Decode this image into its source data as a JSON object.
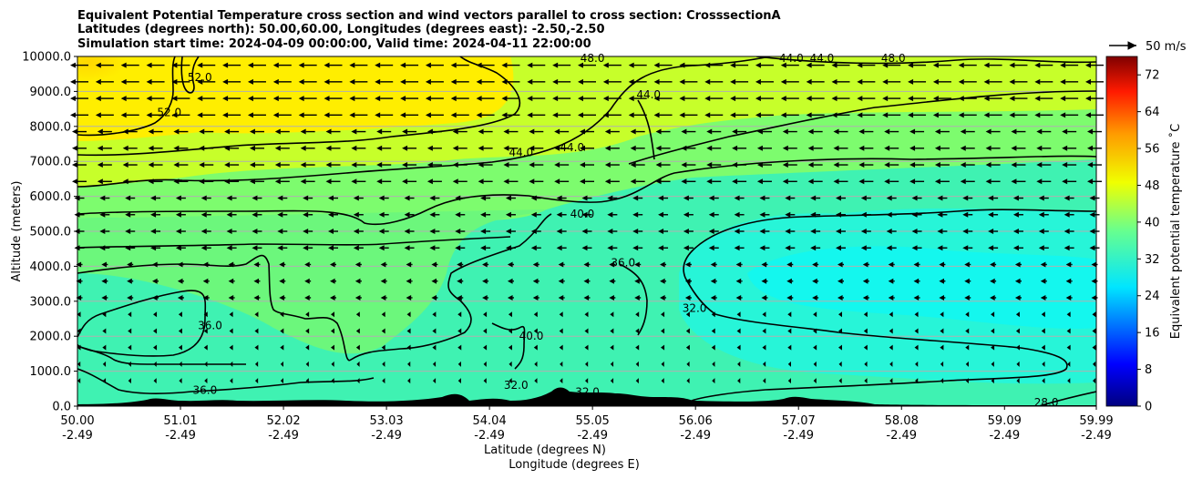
{
  "chart_data": {
    "type": "contour",
    "title_lines": [
      "Equivalent Potential Temperature cross section and wind vectors parallel to cross section: CrosssectionA",
      "Latitudes (degrees north): 50.00,60.00, Longitudes (degrees east): -2.50,-2.50",
      "Simulation start time: 2024-04-09 00:00:00, Valid time: 2024-04-11 22:00:00"
    ],
    "ylabel": "Altitude (meters)",
    "xlabel_lines": [
      "Latitude (degrees N)",
      "Longitude (degrees E)"
    ],
    "ylim": [
      0,
      10000
    ],
    "xlim": [
      50.0,
      59.99
    ],
    "yticks": [
      "0.0",
      "1000.0",
      "2000.0",
      "3000.0",
      "4000.0",
      "5000.0",
      "6000.0",
      "7000.0",
      "8000.0",
      "9000.0",
      "10000.0"
    ],
    "xticks": [
      {
        "lat": "50.00",
        "lon": "-2.49"
      },
      {
        "lat": "51.01",
        "lon": "-2.49"
      },
      {
        "lat": "52.02",
        "lon": "-2.49"
      },
      {
        "lat": "53.03",
        "lon": "-2.49"
      },
      {
        "lat": "54.04",
        "lon": "-2.49"
      },
      {
        "lat": "55.05",
        "lon": "-2.49"
      },
      {
        "lat": "56.06",
        "lon": "-2.49"
      },
      {
        "lat": "57.07",
        "lon": "-2.49"
      },
      {
        "lat": "58.08",
        "lon": "-2.49"
      },
      {
        "lat": "59.09",
        "lon": "-2.49"
      },
      {
        "lat": "59.99",
        "lon": "-2.49"
      }
    ],
    "grid": "horizontal",
    "colorbar": {
      "label": "Equivalent potential temperature $^\\circ$C",
      "label_text": "Equivalent potential temperature ˚C",
      "min": 0,
      "max": 76,
      "ticks": [
        "0",
        "8",
        "16",
        "24",
        "32",
        "40",
        "48",
        "56",
        "64",
        "72"
      ]
    },
    "quiver_key": "50 m/s",
    "contour_labels": [
      {
        "text": "52.0",
        "lat": 51.2,
        "alt": 9400
      },
      {
        "text": "52.0",
        "lat": 50.9,
        "alt": 8400
      },
      {
        "text": "48.0",
        "lat": 55.05,
        "alt": 9950
      },
      {
        "text": "44.0",
        "lat": 55.6,
        "alt": 8900
      },
      {
        "text": "44.0",
        "lat": 57.0,
        "alt": 9950
      },
      {
        "text": "44.0",
        "lat": 57.3,
        "alt": 9950
      },
      {
        "text": "48.0",
        "lat": 58.0,
        "alt": 9950
      },
      {
        "text": "44.0",
        "lat": 54.35,
        "alt": 7250
      },
      {
        "text": "44.0",
        "lat": 54.85,
        "alt": 7400
      },
      {
        "text": "40.0",
        "lat": 54.95,
        "alt": 5500
      },
      {
        "text": "36.0",
        "lat": 55.35,
        "alt": 4100
      },
      {
        "text": "32.0",
        "lat": 56.05,
        "alt": 2800
      },
      {
        "text": "36.0",
        "lat": 51.3,
        "alt": 2300
      },
      {
        "text": "40.0",
        "lat": 54.45,
        "alt": 2000
      },
      {
        "text": "32.0",
        "lat": 54.3,
        "alt": 600
      },
      {
        "text": "32.0",
        "lat": 55.0,
        "alt": 400
      },
      {
        "text": "36.0",
        "lat": 51.25,
        "alt": 450
      },
      {
        "text": "28.0",
        "lat": 59.5,
        "alt": 100
      }
    ]
  }
}
